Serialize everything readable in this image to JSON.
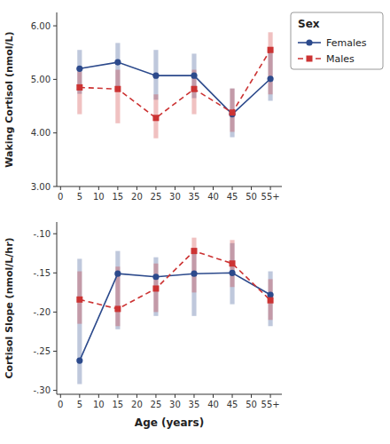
{
  "chart_data": [
    {
      "type": "line",
      "ylabel": "Waking Cortisol (nmol/L)",
      "x": [
        5,
        15,
        25,
        35,
        45,
        55
      ],
      "xlim": [
        -1,
        58
      ],
      "xticks": [
        0,
        5,
        10,
        15,
        20,
        25,
        30,
        35,
        40,
        45,
        50,
        {
          "value": 55,
          "label": "55+"
        }
      ],
      "ylim": [
        3.0,
        6.25
      ],
      "yticks": [
        {
          "value": 3.0,
          "label": "3.00"
        },
        {
          "value": 4.0,
          "label": "4.00"
        },
        {
          "value": 5.0,
          "label": "5.00"
        },
        {
          "value": 6.0,
          "label": "6.00"
        }
      ],
      "grid": false,
      "legend": "right",
      "legend_title": "Sex",
      "series": [
        {
          "name": "Females",
          "color": "#2c4a8c",
          "marker": "circle",
          "line_style": "solid",
          "values": [
            5.2,
            5.32,
            5.07,
            5.07,
            4.35,
            5.01
          ],
          "q1": [
            4.73,
            4.85,
            4.62,
            4.65,
            3.92,
            4.6
          ],
          "q3": [
            5.55,
            5.68,
            5.55,
            5.48,
            4.83,
            5.52
          ]
        },
        {
          "name": "Males",
          "color": "#cc3333",
          "marker": "square",
          "line_style": "dashed",
          "values": [
            4.85,
            4.82,
            4.28,
            4.82,
            4.38,
            5.55
          ],
          "q1": [
            4.35,
            4.18,
            3.9,
            4.35,
            4.02,
            4.72
          ],
          "q3": [
            5.15,
            5.18,
            4.72,
            5.18,
            4.83,
            5.88
          ]
        }
      ]
    },
    {
      "type": "line",
      "ylabel": "Cortisol Slope (nmol/L/hr)",
      "xlabel": "Age (years)",
      "x": [
        5,
        15,
        25,
        35,
        45,
        55
      ],
      "xlim": [
        -1,
        58
      ],
      "xticks": [
        0,
        5,
        10,
        15,
        20,
        25,
        30,
        35,
        40,
        45,
        50,
        {
          "value": 55,
          "label": "55+"
        }
      ],
      "ylim": [
        -0.305,
        -0.085
      ],
      "yticks": [
        {
          "value": -0.3,
          "label": "-.30"
        },
        {
          "value": -0.25,
          "label": "-.25"
        },
        {
          "value": -0.2,
          "label": "-.20"
        },
        {
          "value": -0.15,
          "label": "-.15"
        },
        {
          "value": -0.1,
          "label": "-.10"
        }
      ],
      "grid": false,
      "series": [
        {
          "color": "#2c4a8c",
          "marker": "circle",
          "line_style": "solid",
          "values": [
            -0.262,
            -0.151,
            -0.155,
            -0.151,
            -0.15,
            -0.178
          ],
          "q1": [
            -0.292,
            -0.222,
            -0.205,
            -0.205,
            -0.19,
            -0.218
          ],
          "q3": [
            -0.132,
            -0.122,
            -0.13,
            -0.122,
            -0.112,
            -0.148
          ]
        },
        {
          "color": "#cc3333",
          "marker": "square",
          "line_style": "dashed",
          "values": [
            -0.184,
            -0.196,
            -0.17,
            -0.122,
            -0.138,
            -0.185
          ],
          "q1": [
            -0.215,
            -0.218,
            -0.2,
            -0.175,
            -0.168,
            -0.21
          ],
          "q3": [
            -0.148,
            -0.142,
            -0.138,
            -0.105,
            -0.108,
            -0.158
          ]
        }
      ]
    }
  ]
}
